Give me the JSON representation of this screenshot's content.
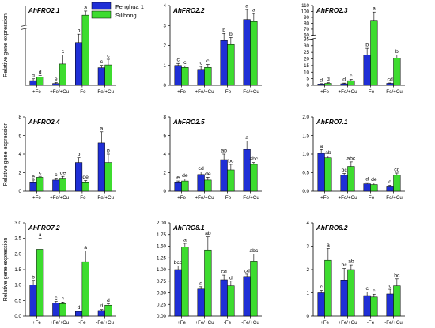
{
  "legend": {
    "entries": [
      {
        "name": "Fenghua 1",
        "color": "#1f2fd6"
      },
      {
        "name": "Silihong",
        "color": "#3ddc2f"
      }
    ],
    "placement": "top"
  },
  "chart_data": [
    {
      "type": "bar",
      "title": "AhFRO2.1",
      "ylabel": "Relative gene expression",
      "categories": [
        "+Fe",
        "+Fe/+Cu",
        "-Fe",
        "-Fe/+Cu"
      ],
      "axis_break": true,
      "yticks": [],
      "series": [
        {
          "name": "Fenghua 1",
          "values": [
            1.0,
            0.4,
            9.2,
            3.8
          ],
          "errors": [
            0.4,
            0.2,
            1.8,
            0.5
          ],
          "letters": [
            "d",
            "e",
            "b",
            "c"
          ]
        },
        {
          "name": "Silihong",
          "values": [
            1.8,
            4.6,
            20.5,
            4.4
          ],
          "errors": [
            0.3,
            1.9,
            1.5,
            1.2
          ],
          "letters": [
            "d",
            "c",
            "a",
            "c"
          ]
        }
      ]
    },
    {
      "type": "bar",
      "title": "AhFRO2.2",
      "ylabel": "",
      "categories": [
        "+Fe",
        "+Fe/+Cu",
        "-Fe",
        "-Fe/+Cu"
      ],
      "ylim": [
        0,
        4
      ],
      "yticks": [
        "0",
        "1",
        "2",
        "3",
        "4"
      ],
      "series": [
        {
          "name": "Fenghua 1",
          "values": [
            1.0,
            0.8,
            2.25,
            3.3
          ],
          "errors": [
            0.1,
            0.15,
            0.35,
            0.5
          ],
          "letters": [
            "c",
            "c",
            "b",
            "a"
          ]
        },
        {
          "name": "Silihong",
          "values": [
            0.9,
            0.9,
            2.05,
            3.2
          ],
          "errors": [
            0.08,
            0.15,
            0.35,
            0.4
          ],
          "letters": [
            "c",
            "c",
            "b",
            "a"
          ]
        }
      ]
    },
    {
      "type": "bar",
      "title": "AhFRO2.3",
      "ylabel": "",
      "categories": [
        "+Fe",
        "+Fe/+Cu",
        "-Fe",
        "-Fe/+Cu"
      ],
      "ylim": [
        0,
        35
      ],
      "yticks": [
        "0",
        "5",
        "10",
        "15",
        "20",
        "25",
        "30",
        "35"
      ],
      "ytick_values": [
        0,
        5,
        10,
        15,
        20,
        25,
        30,
        35
      ],
      "axis_break": true,
      "extra_yticks": [
        "60",
        "70",
        "80",
        "90",
        "100",
        "110"
      ],
      "series": [
        {
          "name": "Fenghua 1",
          "values": [
            1.0,
            1.2,
            23.0,
            1.5
          ],
          "errors": [
            0.3,
            0.5,
            5.0,
            0.3
          ],
          "letters": [
            "d",
            "d",
            "b",
            "cd"
          ]
        },
        {
          "name": "Silihong",
          "values": [
            1.5,
            3.5,
            85.0,
            20.5
          ],
          "errors": [
            0.5,
            1.0,
            14.0,
            2.5
          ],
          "letters": [
            "d",
            "c",
            "a",
            "b"
          ]
        }
      ]
    },
    {
      "type": "bar",
      "title": "AhFRO2.4",
      "ylabel": "Relative gene expression",
      "categories": [
        "+Fe",
        "+Fe/+Cu",
        "-Fe",
        "-Fe/+Cu"
      ],
      "ylim": [
        0,
        8
      ],
      "yticks": [
        "0",
        "2",
        "4",
        "6",
        "8"
      ],
      "series": [
        {
          "name": "Fenghua 1",
          "values": [
            1.0,
            1.2,
            3.1,
            5.2
          ],
          "errors": [
            0.2,
            0.2,
            0.5,
            1.2
          ],
          "letters": [
            "e",
            "c",
            "b",
            "a"
          ]
        },
        {
          "name": "Silihong",
          "values": [
            1.5,
            1.4,
            1.0,
            3.1
          ],
          "errors": [
            0.1,
            0.2,
            0.15,
            0.9
          ],
          "letters": [
            "c",
            "de",
            "de",
            "b"
          ]
        }
      ]
    },
    {
      "type": "bar",
      "title": "AhFRO2.5",
      "ylabel": "",
      "categories": [
        "+Fe",
        "+Fe/+Cu",
        "-Fe",
        "-Fe/+Cu"
      ],
      "ylim": [
        0,
        8
      ],
      "yticks": [
        "0",
        "2",
        "4",
        "6",
        "8"
      ],
      "series": [
        {
          "name": "Fenghua 1",
          "values": [
            1.0,
            1.8,
            3.4,
            4.5
          ],
          "errors": [
            0.1,
            0.3,
            0.6,
            0.9
          ],
          "letters": [
            "e",
            "cd",
            "ab",
            "a"
          ]
        },
        {
          "name": "Silihong",
          "values": [
            1.1,
            1.2,
            2.3,
            2.9
          ],
          "errors": [
            0.2,
            0.3,
            0.6,
            0.2
          ],
          "letters": [
            "de",
            "de",
            "bc",
            "abc"
          ]
        }
      ]
    },
    {
      "type": "bar",
      "title": "AhFRO7.1",
      "ylabel": "",
      "categories": [
        "+Fe",
        "+Fe/+Cu",
        "-Fe",
        "-Fe/+Cu"
      ],
      "ylim": [
        0,
        2.0
      ],
      "yticks": [
        "0.0",
        "0.5",
        "1.0",
        "1.5",
        "2.0"
      ],
      "series": [
        {
          "name": "Fenghua 1",
          "values": [
            1.02,
            0.43,
            0.2,
            0.14
          ],
          "errors": [
            0.1,
            0.05,
            0.03,
            0.02
          ],
          "letters": [
            "a",
            "bc",
            "d",
            "d"
          ]
        },
        {
          "name": "Silihong",
          "values": [
            0.9,
            0.67,
            0.18,
            0.43
          ],
          "errors": [
            0.05,
            0.12,
            0.04,
            0.06
          ],
          "letters": [
            "ab",
            "abc",
            "de",
            "cd"
          ]
        }
      ]
    },
    {
      "type": "bar",
      "title": "AhFRO7.2",
      "ylabel": "Relative gene expression",
      "categories": [
        "+Fe",
        "+Fe/+Cu",
        "-Fe",
        "-Fe/+Cu"
      ],
      "ylim": [
        0,
        3.0
      ],
      "yticks": [
        "0.0",
        "0.5",
        "1.0",
        "1.5",
        "2.0",
        "2.5",
        "3.0"
      ],
      "series": [
        {
          "name": "Fenghua 1",
          "values": [
            1.0,
            0.42,
            0.15,
            0.18
          ],
          "errors": [
            0.15,
            0.05,
            0.02,
            0.03
          ],
          "letters": [
            "b",
            "c",
            "d",
            "d"
          ]
        },
        {
          "name": "Silihong",
          "values": [
            2.15,
            0.4,
            1.75,
            0.35
          ],
          "errors": [
            0.35,
            0.05,
            0.35,
            0.05
          ],
          "letters": [
            "a",
            "c",
            "a",
            "d"
          ]
        }
      ]
    },
    {
      "type": "bar",
      "title": "AhFRO8.1",
      "ylabel": "",
      "categories": [
        "+Fe",
        "+Fe/+Cu",
        "-Fe",
        "-Fe/+Cu"
      ],
      "ylim": [
        0,
        2.0
      ],
      "yticks": [
        "0.00",
        "0.25",
        "0.50",
        "0.75",
        "1.00",
        "1.25",
        "1.50",
        "1.75",
        "2.00"
      ],
      "series": [
        {
          "name": "Fenghua 1",
          "values": [
            1.0,
            0.58,
            0.78,
            0.85
          ],
          "errors": [
            0.08,
            0.05,
            0.1,
            0.05
          ],
          "letters": [
            "bcd",
            "d",
            "cd",
            "cd"
          ]
        },
        {
          "name": "Silihong",
          "values": [
            1.48,
            1.42,
            0.65,
            1.18
          ],
          "errors": [
            0.08,
            0.28,
            0.1,
            0.15
          ],
          "letters": [
            "a",
            "ab",
            "d",
            "abc"
          ]
        }
      ]
    },
    {
      "type": "bar",
      "title": "AhFRO8.2",
      "ylabel": "",
      "categories": [
        "+Fe",
        "+Fe/+Cu",
        "-Fe",
        "-Fe/+Cu"
      ],
      "ylim": [
        0,
        4
      ],
      "yticks": [
        "0",
        "1",
        "2",
        "3",
        "4"
      ],
      "series": [
        {
          "name": "Fenghua 1",
          "values": [
            1.0,
            1.55,
            0.88,
            0.95
          ],
          "errors": [
            0.1,
            0.5,
            0.15,
            0.2
          ],
          "letters": [
            "c",
            "bc",
            "c",
            "c"
          ]
        },
        {
          "name": "Silihong",
          "values": [
            2.4,
            2.0,
            0.82,
            1.3
          ],
          "errors": [
            0.5,
            0.2,
            0.12,
            0.3
          ],
          "letters": [
            "a",
            "ab",
            "c",
            "bc"
          ]
        }
      ]
    }
  ]
}
